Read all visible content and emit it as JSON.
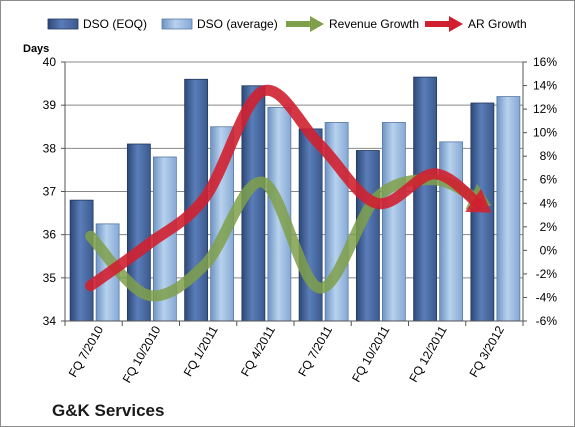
{
  "chart_data": {
    "type": "bar",
    "title": "",
    "footer": "G&K Services",
    "ylabel": "Days",
    "ylim": [
      34,
      40
    ],
    "yticks": [
      34,
      35,
      36,
      37,
      38,
      39,
      40
    ],
    "y2lim": [
      -6,
      16
    ],
    "y2ticks": [
      "-6%",
      "-4%",
      "-2%",
      "0%",
      "2%",
      "4%",
      "6%",
      "8%",
      "10%",
      "12%",
      "14%",
      "16%"
    ],
    "y2values": [
      -6,
      -4,
      -2,
      0,
      2,
      4,
      6,
      8,
      10,
      12,
      14,
      16
    ],
    "grid": true,
    "legend_position": "top",
    "categories": [
      "FQ 7/2010",
      "FQ 10/2010",
      "FQ 1/2011",
      "FQ 4/2011",
      "FQ 7/2011",
      "FQ 10/2011",
      "FQ 12/2011",
      "FQ 3/2012"
    ],
    "series": [
      {
        "name": "DSO (EOQ)",
        "type": "bar",
        "axis": "left",
        "color": "#4f6fa6",
        "values": [
          36.8,
          38.1,
          39.6,
          39.45,
          38.45,
          37.95,
          39.65,
          39.05
        ]
      },
      {
        "name": "DSO (average)",
        "type": "bar",
        "axis": "left",
        "color": "#9dbde0",
        "values": [
          36.25,
          37.8,
          38.5,
          38.95,
          38.6,
          38.6,
          38.15,
          39.2
        ]
      },
      {
        "name": "Revenue Growth",
        "type": "line",
        "axis": "right",
        "color": "#7fa04a",
        "values": [
          1.2,
          -3.8,
          -1.2,
          5.8,
          -3.2,
          4.5,
          6.0,
          3.8
        ]
      },
      {
        "name": "AR Growth",
        "type": "line",
        "axis": "right",
        "color": "#d02030",
        "values": [
          -3.0,
          0.5,
          4.5,
          13.5,
          9.0,
          4.0,
          6.5,
          3.2
        ]
      }
    ]
  }
}
